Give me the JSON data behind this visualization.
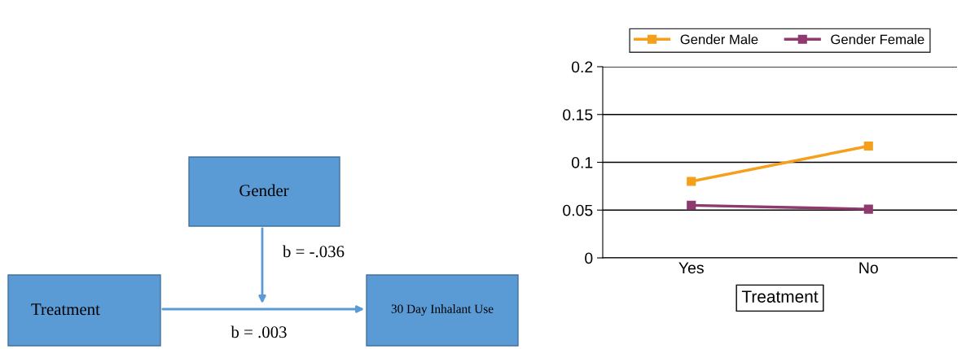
{
  "chart_data": [
    {
      "type": "other",
      "annotations": [
        "Gender",
        "Treatment",
        "30 Day Inhalant Use",
        "b = -.036",
        "b = .003"
      ]
    },
    {
      "type": "line",
      "xlabel": "Treatment",
      "categories": [
        "Yes",
        "No"
      ],
      "series": [
        {
          "name": "Gender Male",
          "color": "#f59f1a",
          "values": [
            0.08,
            0.117
          ]
        },
        {
          "name": "Gender Female",
          "color": "#8e3a6e",
          "values": [
            0.055,
            0.051
          ]
        }
      ],
      "ylim": [
        0,
        0.2
      ],
      "yticks": [
        0,
        0.05,
        0.1,
        0.15,
        0.2
      ],
      "grid": "y",
      "legend": "top",
      "marker": "square"
    }
  ]
}
